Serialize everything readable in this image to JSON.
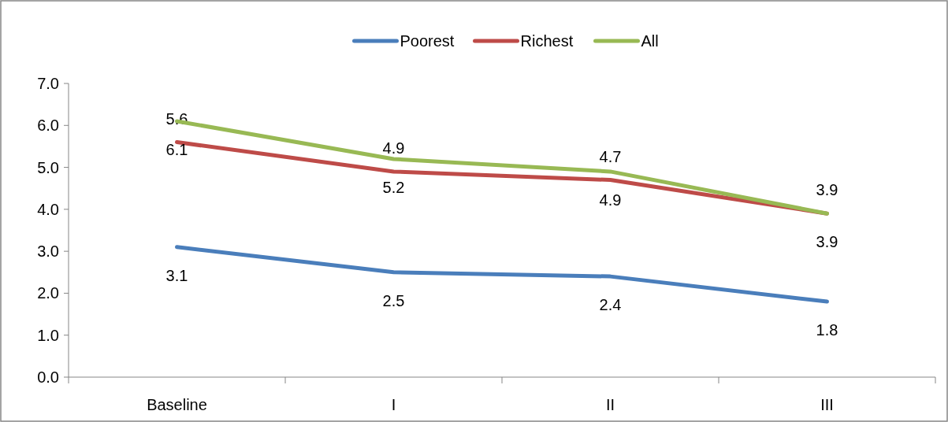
{
  "chart_data": {
    "type": "line",
    "categories": [
      "Baseline",
      "I",
      "II",
      "III"
    ],
    "series": [
      {
        "name": "Poorest",
        "color": "#4a7ebb",
        "values": [
          3.1,
          2.5,
          2.4,
          1.8
        ]
      },
      {
        "name": "Richest",
        "color": "#be4b48",
        "values": [
          5.6,
          4.9,
          4.7,
          3.9
        ]
      },
      {
        "name": "All",
        "color": "#98b954",
        "values": [
          6.1,
          5.2,
          4.9,
          3.9
        ]
      }
    ],
    "ylim": [
      0,
      7
    ],
    "yticks": [
      {
        "value": 0,
        "label": "0.0"
      },
      {
        "value": 1,
        "label": "1.0"
      },
      {
        "value": 2,
        "label": "2.0"
      },
      {
        "value": 3,
        "label": "3.0"
      },
      {
        "value": 4,
        "label": "4.0"
      },
      {
        "value": 5,
        "label": "5.0"
      },
      {
        "value": 6,
        "label": "6.0"
      },
      {
        "value": 7,
        "label": "7.0"
      }
    ],
    "grid": false,
    "legend": "top",
    "data_labels": true,
    "marker": "none",
    "line_style": "solid"
  }
}
